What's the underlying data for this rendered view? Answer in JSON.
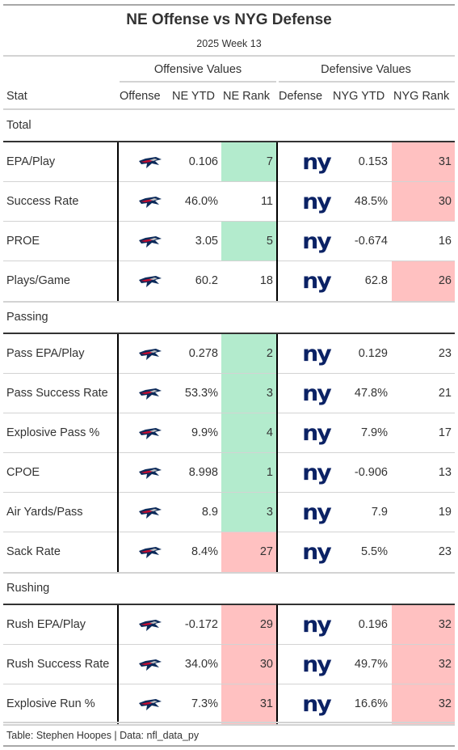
{
  "title": "NE Offense vs NYG Defense",
  "subtitle": "2025 Week 13",
  "spanners": {
    "offense": "Offensive Values",
    "defense": "Defensive Values"
  },
  "columns": [
    "Stat",
    "Offense",
    "NE YTD",
    "NE Rank",
    "Defense",
    "NYG YTD",
    "NYG Rank"
  ],
  "colors": {
    "good": "#b3ebcd",
    "bad": "#ffc1c1",
    "ne_navy": "#0c2a5a",
    "ne_red": "#c60c30",
    "nyg_blue": "#0b2265"
  },
  "icons": {
    "offense": "patriots-logo-icon",
    "defense": "giants-logo-icon"
  },
  "logo_text": {
    "defense": "ny"
  },
  "groups": [
    {
      "label": "Total",
      "rows": [
        {
          "stat": "EPA/Play",
          "ne_ytd": "0.106",
          "ne_rank": "7",
          "ne_color": "good",
          "nyg_ytd": "0.153",
          "nyg_rank": "31",
          "nyg_color": "bad"
        },
        {
          "stat": "Success Rate",
          "ne_ytd": "46.0%",
          "ne_rank": "11",
          "ne_color": "",
          "nyg_ytd": "48.5%",
          "nyg_rank": "30",
          "nyg_color": "bad"
        },
        {
          "stat": "PROE",
          "ne_ytd": "3.05",
          "ne_rank": "5",
          "ne_color": "good",
          "nyg_ytd": "-0.674",
          "nyg_rank": "16",
          "nyg_color": ""
        },
        {
          "stat": "Plays/Game",
          "ne_ytd": "60.2",
          "ne_rank": "18",
          "ne_color": "",
          "nyg_ytd": "62.8",
          "nyg_rank": "26",
          "nyg_color": "bad"
        }
      ]
    },
    {
      "label": "Passing",
      "rows": [
        {
          "stat": "Pass EPA/Play",
          "ne_ytd": "0.278",
          "ne_rank": "2",
          "ne_color": "good",
          "nyg_ytd": "0.129",
          "nyg_rank": "23",
          "nyg_color": ""
        },
        {
          "stat": "Pass Success Rate",
          "ne_ytd": "53.3%",
          "ne_rank": "3",
          "ne_color": "good",
          "nyg_ytd": "47.8%",
          "nyg_rank": "21",
          "nyg_color": ""
        },
        {
          "stat": "Explosive Pass %",
          "ne_ytd": "9.9%",
          "ne_rank": "4",
          "ne_color": "good",
          "nyg_ytd": "7.9%",
          "nyg_rank": "17",
          "nyg_color": ""
        },
        {
          "stat": "CPOE",
          "ne_ytd": "8.998",
          "ne_rank": "1",
          "ne_color": "good",
          "nyg_ytd": "-0.906",
          "nyg_rank": "13",
          "nyg_color": ""
        },
        {
          "stat": "Air Yards/Pass",
          "ne_ytd": "8.9",
          "ne_rank": "3",
          "ne_color": "good",
          "nyg_ytd": "7.9",
          "nyg_rank": "19",
          "nyg_color": ""
        },
        {
          "stat": "Sack Rate",
          "ne_ytd": "8.4%",
          "ne_rank": "27",
          "ne_color": "bad",
          "nyg_ytd": "5.5%",
          "nyg_rank": "23",
          "nyg_color": ""
        }
      ]
    },
    {
      "label": "Rushing",
      "rows": [
        {
          "stat": "Rush EPA/Play",
          "ne_ytd": "-0.172",
          "ne_rank": "29",
          "ne_color": "bad",
          "nyg_ytd": "0.196",
          "nyg_rank": "32",
          "nyg_color": "bad"
        },
        {
          "stat": "Rush Success Rate",
          "ne_ytd": "34.0%",
          "ne_rank": "30",
          "ne_color": "bad",
          "nyg_ytd": "49.7%",
          "nyg_rank": "32",
          "nyg_color": "bad"
        },
        {
          "stat": "Explosive Run %",
          "ne_ytd": "7.3%",
          "ne_rank": "31",
          "ne_color": "bad",
          "nyg_ytd": "16.6%",
          "nyg_rank": "32",
          "nyg_color": "bad"
        }
      ]
    }
  ],
  "footer": "Table: Stephen Hoopes | Data: nfl_data_py"
}
